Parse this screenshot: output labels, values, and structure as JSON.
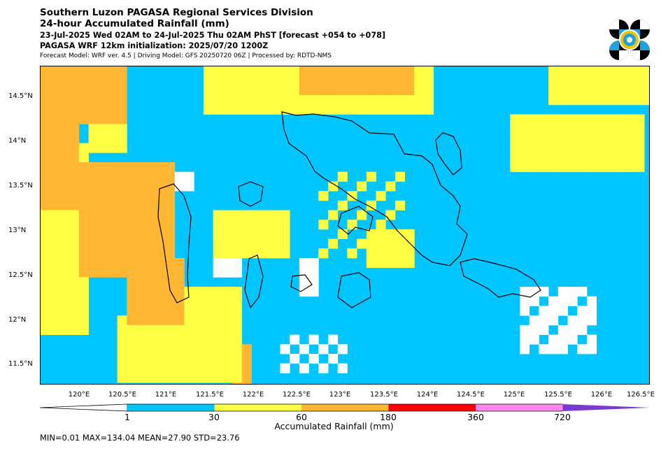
{
  "header": {
    "title_line1": "Southern Luzon PAGASA Regional Services Division",
    "title_line2": "24-hour Accumulated Rainfall (mm)",
    "title_line3": "23-Jul-2025 Wed 02AM to 24-Jul-2025 Thu 02AM PhST [forecast +054 to +078]",
    "title_line4": "PAGASA WRF 12km initialization: 2025/07/20 1200Z",
    "model_info": "Forecast Model: WRF ver. 4.5 | Driving Model: GFS 20250720 06Z | Processed by: RDTD-NMS"
  },
  "logo": {
    "icon": "pagasa-logo-icon",
    "colors": [
      "#000000",
      "#1fa3e0",
      "#f2c200"
    ]
  },
  "map": {
    "extent": {
      "lon": [
        119.55,
        126.55
      ],
      "lat": [
        11.28,
        14.85
      ]
    },
    "lat_ticks": [
      "14.5°N",
      "14°N",
      "13.5°N",
      "13°N",
      "12.5°N",
      "12°N",
      "11.5°N"
    ],
    "lon_ticks": [
      "120°E",
      "120.5°E",
      "121°E",
      "121.5°E",
      "122°E",
      "122.5°E",
      "123°E",
      "123.5°E",
      "124°E",
      "124.5°E",
      "125°E",
      "125.5°E",
      "126°E",
      "126.5°E"
    ]
  },
  "colorbar": {
    "labels": [
      "1",
      "30",
      "60",
      "180",
      "360",
      "720"
    ],
    "colors": [
      "#00c5ff",
      "#ffff44",
      "#ffb733",
      "#ff0000",
      "#ff88ee",
      "#7a3ad0"
    ],
    "title": "Accumulated Rainfall (mm)"
  },
  "stats": "MIN=0.01   MAX=134.04   MEAN=27.90   STD=23.76"
}
